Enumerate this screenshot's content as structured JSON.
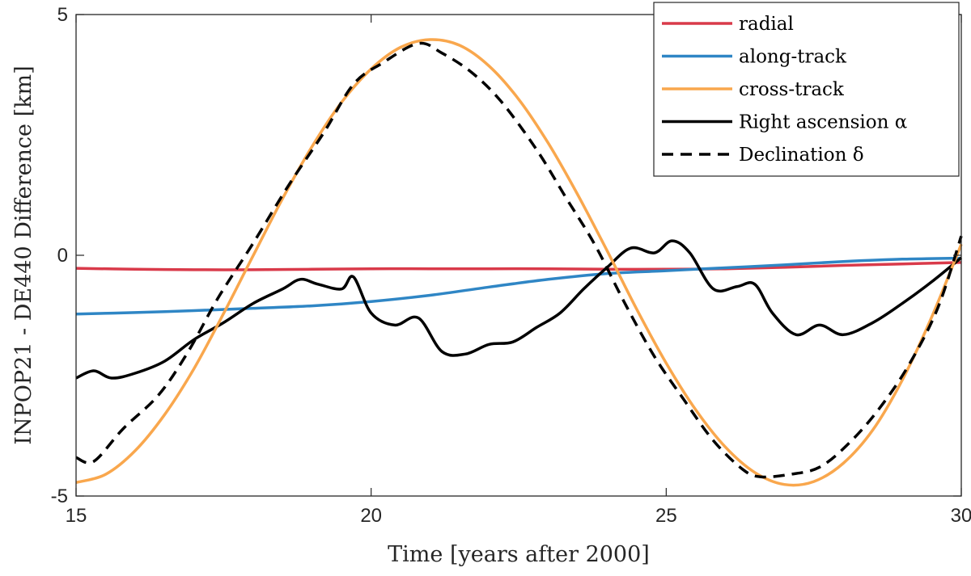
{
  "chart_data": {
    "type": "line",
    "title": "",
    "xlabel": "Time [years after 2000]",
    "ylabel": "INPOP21 - DE440 Difference [km]",
    "xlim": [
      15,
      30
    ],
    "ylim": [
      -5,
      5
    ],
    "xticks": [
      15,
      20,
      25,
      30
    ],
    "yticks": [
      -5,
      0,
      5
    ],
    "xtick_labels": [
      "15",
      "20",
      "25",
      "30"
    ],
    "ytick_labels": [
      "-5",
      "0",
      "5"
    ],
    "legend_position": "top-right",
    "series": [
      {
        "name": "radial",
        "color": "#d93a4a",
        "style": "solid",
        "points": [
          [
            15,
            -0.27
          ],
          [
            16,
            -0.29
          ],
          [
            17,
            -0.3
          ],
          [
            18,
            -0.3
          ],
          [
            19,
            -0.29
          ],
          [
            20,
            -0.28
          ],
          [
            21,
            -0.28
          ],
          [
            22,
            -0.28
          ],
          [
            23,
            -0.28
          ],
          [
            24,
            -0.29
          ],
          [
            25,
            -0.29
          ],
          [
            26,
            -0.28
          ],
          [
            27,
            -0.25
          ],
          [
            28,
            -0.21
          ],
          [
            29,
            -0.18
          ],
          [
            30,
            -0.15
          ]
        ]
      },
      {
        "name": "along-track",
        "color": "#2f86c5",
        "style": "solid",
        "points": [
          [
            15,
            -1.22
          ],
          [
            16,
            -1.19
          ],
          [
            17,
            -1.15
          ],
          [
            18,
            -1.1
          ],
          [
            19,
            -1.05
          ],
          [
            20,
            -0.96
          ],
          [
            21,
            -0.83
          ],
          [
            22,
            -0.66
          ],
          [
            23,
            -0.5
          ],
          [
            24,
            -0.38
          ],
          [
            25,
            -0.32
          ],
          [
            26,
            -0.26
          ],
          [
            27,
            -0.2
          ],
          [
            28,
            -0.13
          ],
          [
            29,
            -0.08
          ],
          [
            30,
            -0.06
          ]
        ]
      },
      {
        "name": "cross-track",
        "color": "#f9a74d",
        "style": "solid",
        "points": [
          [
            15,
            -4.72
          ],
          [
            15.5,
            -4.55
          ],
          [
            16,
            -4.06
          ],
          [
            16.5,
            -3.31
          ],
          [
            17,
            -2.35
          ],
          [
            17.5,
            -1.21
          ],
          [
            18,
            -0.01
          ],
          [
            18.5,
            1.18
          ],
          [
            19,
            2.26
          ],
          [
            19.5,
            3.18
          ],
          [
            20,
            3.87
          ],
          [
            20.5,
            4.32
          ],
          [
            21,
            4.48
          ],
          [
            21.5,
            4.36
          ],
          [
            22,
            3.93
          ],
          [
            22.5,
            3.24
          ],
          [
            23,
            2.33
          ],
          [
            23.5,
            1.26
          ],
          [
            24,
            0.09
          ],
          [
            24.5,
            -1.12
          ],
          [
            25,
            -2.24
          ],
          [
            25.5,
            -3.21
          ],
          [
            26,
            -3.98
          ],
          [
            26.5,
            -4.51
          ],
          [
            27,
            -4.76
          ],
          [
            27.5,
            -4.7
          ],
          [
            28,
            -4.32
          ],
          [
            28.5,
            -3.63
          ],
          [
            29,
            -2.59
          ],
          [
            29.5,
            -1.28
          ],
          [
            30,
            0.23
          ]
        ]
      },
      {
        "name": "Right ascension α",
        "color": "#000000",
        "style": "solid",
        "points": [
          [
            15,
            -2.55
          ],
          [
            15.3,
            -2.4
          ],
          [
            15.6,
            -2.55
          ],
          [
            16,
            -2.45
          ],
          [
            16.5,
            -2.2
          ],
          [
            17,
            -1.75
          ],
          [
            17.5,
            -1.4
          ],
          [
            18,
            -1.0
          ],
          [
            18.5,
            -0.7
          ],
          [
            18.8,
            -0.5
          ],
          [
            19.1,
            -0.6
          ],
          [
            19.5,
            -0.7
          ],
          [
            19.7,
            -0.45
          ],
          [
            20,
            -1.2
          ],
          [
            20.4,
            -1.45
          ],
          [
            20.8,
            -1.3
          ],
          [
            21.2,
            -2.0
          ],
          [
            21.6,
            -2.05
          ],
          [
            22,
            -1.85
          ],
          [
            22.4,
            -1.8
          ],
          [
            22.8,
            -1.5
          ],
          [
            23.2,
            -1.2
          ],
          [
            23.6,
            -0.7
          ],
          [
            24,
            -0.25
          ],
          [
            24.4,
            0.15
          ],
          [
            24.8,
            0.05
          ],
          [
            25.1,
            0.3
          ],
          [
            25.4,
            0.05
          ],
          [
            25.8,
            -0.7
          ],
          [
            26.2,
            -0.65
          ],
          [
            26.5,
            -0.6
          ],
          [
            26.8,
            -1.2
          ],
          [
            27.2,
            -1.65
          ],
          [
            27.6,
            -1.45
          ],
          [
            28,
            -1.65
          ],
          [
            28.5,
            -1.4
          ],
          [
            29,
            -1.0
          ],
          [
            29.5,
            -0.55
          ],
          [
            30,
            -0.05
          ]
        ]
      },
      {
        "name": "Declination δ",
        "color": "#000000",
        "style": "dashed",
        "points": [
          [
            15,
            -4.2
          ],
          [
            15.3,
            -4.28
          ],
          [
            15.8,
            -3.6
          ],
          [
            16.4,
            -2.9
          ],
          [
            16.9,
            -2.0
          ],
          [
            17.4,
            -0.9
          ],
          [
            18,
            0.25
          ],
          [
            18.6,
            1.45
          ],
          [
            19.2,
            2.55
          ],
          [
            19.7,
            3.55
          ],
          [
            20.2,
            4.0
          ],
          [
            20.8,
            4.4
          ],
          [
            21.2,
            4.2
          ],
          [
            21.7,
            3.8
          ],
          [
            22.2,
            3.2
          ],
          [
            22.8,
            2.2
          ],
          [
            23.3,
            1.2
          ],
          [
            23.8,
            0.2
          ],
          [
            24.3,
            -1.0
          ],
          [
            24.8,
            -2.1
          ],
          [
            25.3,
            -3.0
          ],
          [
            25.8,
            -3.85
          ],
          [
            26.3,
            -4.45
          ],
          [
            26.6,
            -4.6
          ],
          [
            27.1,
            -4.55
          ],
          [
            27.6,
            -4.4
          ],
          [
            28.1,
            -3.9
          ],
          [
            28.6,
            -3.2
          ],
          [
            29.1,
            -2.3
          ],
          [
            29.6,
            -1.1
          ],
          [
            30,
            0.4
          ]
        ]
      }
    ]
  }
}
